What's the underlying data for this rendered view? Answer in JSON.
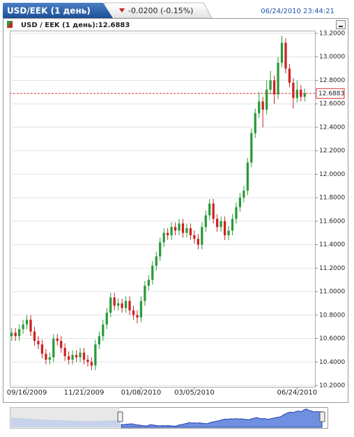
{
  "chart_data": {
    "type": "candlestick",
    "title": "USD/EEK (1 день)",
    "change": "-0.0200 (-0.15%)",
    "timestamp": "06/24/2010 23:44:21",
    "legend": "USD / EEK (1 день):12.6883",
    "last_value": 12.6883,
    "up_color": "#2a9a3a",
    "down_color": "#cc2222",
    "last_color": "#dd3333",
    "grid": true,
    "ylim": [
      10.2,
      13.2
    ],
    "yticks": [
      {
        "value": 10.2,
        "label": "10.2000"
      },
      {
        "value": 10.4,
        "label": "10.4000"
      },
      {
        "value": 10.6,
        "label": "10.6000"
      },
      {
        "value": 10.8,
        "label": "10.8000"
      },
      {
        "value": 11.0,
        "label": "11.0000"
      },
      {
        "value": 11.2,
        "label": "11.2000"
      },
      {
        "value": 11.4,
        "label": "11.4000"
      },
      {
        "value": 11.6,
        "label": "11.6000"
      },
      {
        "value": 11.8,
        "label": "11.8000"
      },
      {
        "value": 12.0,
        "label": "12.0000"
      },
      {
        "value": 12.2,
        "label": "12.2000"
      },
      {
        "value": 12.4,
        "label": "12.4000"
      },
      {
        "value": 12.6,
        "label": "12.6000"
      },
      {
        "value": 12.8,
        "label": "12.8000"
      },
      {
        "value": 13.0,
        "label": "13.0000"
      },
      {
        "value": 13.2,
        "label": "13.2000"
      }
    ],
    "categories": [
      null,
      null,
      null,
      null,
      "09/16/2009",
      null,
      null,
      null,
      null,
      null,
      null,
      null,
      null,
      null,
      null,
      null,
      null,
      null,
      null,
      "11/21/2009",
      null,
      null,
      null,
      null,
      null,
      null,
      null,
      null,
      null,
      null,
      null,
      null,
      null,
      null,
      "01/08/2010",
      null,
      null,
      null,
      null,
      null,
      null,
      null,
      null,
      null,
      null,
      null,
      null,
      null,
      "03/05/2010",
      null,
      null,
      null,
      null,
      null,
      null,
      null,
      null,
      null,
      null,
      null,
      null,
      null,
      null,
      null,
      null,
      null,
      null,
      null,
      null,
      null,
      null,
      null,
      null,
      null,
      null,
      "06/24/2010",
      null,
      null
    ],
    "open": [
      10.62,
      10.65,
      10.62,
      10.68,
      10.72,
      10.76,
      10.66,
      10.58,
      10.55,
      10.47,
      10.42,
      10.44,
      10.6,
      10.58,
      10.52,
      10.45,
      10.42,
      10.46,
      10.44,
      10.48,
      10.42,
      10.4,
      10.37,
      10.55,
      10.62,
      10.72,
      10.82,
      10.95,
      10.88,
      10.9,
      10.86,
      10.92,
      10.84,
      10.8,
      10.78,
      10.92,
      11.05,
      11.1,
      11.22,
      11.3,
      11.42,
      11.5,
      11.48,
      11.55,
      11.52,
      11.58,
      11.5,
      11.54,
      11.48,
      11.45,
      11.4,
      11.55,
      11.65,
      11.75,
      11.62,
      11.55,
      11.6,
      11.48,
      11.52,
      11.62,
      11.72,
      11.8,
      11.86,
      12.1,
      12.35,
      12.52,
      12.62,
      12.55,
      12.72,
      12.8,
      12.68,
      12.95,
      13.12,
      12.9,
      12.78,
      12.65,
      12.72,
      12.66
    ],
    "high": [
      10.69,
      10.69,
      10.72,
      10.76,
      10.8,
      10.8,
      10.7,
      10.62,
      10.59,
      10.51,
      10.48,
      10.64,
      10.64,
      10.62,
      10.56,
      10.49,
      10.5,
      10.5,
      10.52,
      10.52,
      10.46,
      10.44,
      10.59,
      10.66,
      10.76,
      10.86,
      10.99,
      10.99,
      10.94,
      10.94,
      10.96,
      10.96,
      10.88,
      10.84,
      10.96,
      11.09,
      11.14,
      11.26,
      11.34,
      11.46,
      11.54,
      11.54,
      11.59,
      11.59,
      11.62,
      11.62,
      11.58,
      11.58,
      11.52,
      11.49,
      11.59,
      11.69,
      11.79,
      11.79,
      11.66,
      11.64,
      11.64,
      11.56,
      11.66,
      11.76,
      11.84,
      11.9,
      12.14,
      12.39,
      12.56,
      12.7,
      12.66,
      12.8,
      12.88,
      12.84,
      13.0,
      13.18,
      13.16,
      12.94,
      12.82,
      12.8,
      12.76,
      12.73
    ],
    "low": [
      10.58,
      10.58,
      10.58,
      10.64,
      10.68,
      10.62,
      10.54,
      10.51,
      10.43,
      10.38,
      10.38,
      10.4,
      10.54,
      10.48,
      10.41,
      10.38,
      10.38,
      10.4,
      10.4,
      10.38,
      10.36,
      10.33,
      10.33,
      10.51,
      10.58,
      10.68,
      10.78,
      10.84,
      10.84,
      10.82,
      10.82,
      10.8,
      10.76,
      10.73,
      10.74,
      10.88,
      11.01,
      11.06,
      11.18,
      11.26,
      11.38,
      11.44,
      11.44,
      11.48,
      11.48,
      11.46,
      11.46,
      11.44,
      11.41,
      11.36,
      11.36,
      11.51,
      11.61,
      11.58,
      11.51,
      11.51,
      11.44,
      11.44,
      11.48,
      11.58,
      11.68,
      11.76,
      11.82,
      12.06,
      12.31,
      12.48,
      12.4,
      12.51,
      12.68,
      12.6,
      12.64,
      12.91,
      12.86,
      12.74,
      12.56,
      12.61,
      12.62,
      12.62
    ],
    "close": [
      10.65,
      10.62,
      10.68,
      10.72,
      10.76,
      10.66,
      10.58,
      10.55,
      10.47,
      10.42,
      10.44,
      10.6,
      10.58,
      10.52,
      10.45,
      10.42,
      10.46,
      10.44,
      10.48,
      10.42,
      10.4,
      10.37,
      10.55,
      10.62,
      10.72,
      10.82,
      10.95,
      10.88,
      10.9,
      10.86,
      10.92,
      10.84,
      10.8,
      10.78,
      10.92,
      11.05,
      11.1,
      11.22,
      11.3,
      11.42,
      11.5,
      11.48,
      11.55,
      11.52,
      11.58,
      11.5,
      11.54,
      11.48,
      11.45,
      11.4,
      11.55,
      11.65,
      11.75,
      11.62,
      11.55,
      11.6,
      11.48,
      11.52,
      11.62,
      11.72,
      11.8,
      11.86,
      12.1,
      12.35,
      12.52,
      12.62,
      12.55,
      12.72,
      12.8,
      12.68,
      12.95,
      13.12,
      12.9,
      12.78,
      12.65,
      12.72,
      12.66,
      12.69
    ]
  }
}
